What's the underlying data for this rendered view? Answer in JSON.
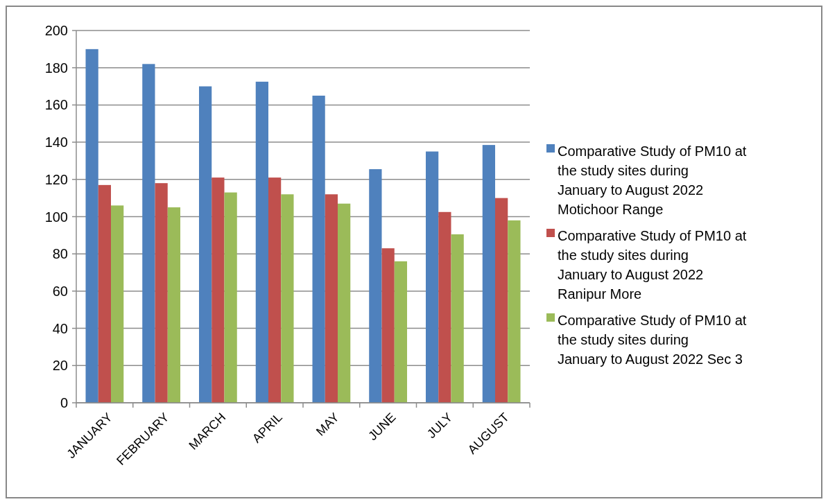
{
  "chart_data": {
    "type": "bar",
    "categories": [
      "JANUARY",
      "FEBRUARY",
      "MARCH",
      "APRIL",
      "MAY",
      "JUNE",
      "JULY",
      "AUGUST"
    ],
    "series": [
      {
        "name": "Comparative Study of PM10 at the study sites during January to August 2022 Motichoor Range",
        "color": "#4f81bd",
        "values": [
          190,
          182,
          170,
          172.5,
          165,
          125.5,
          135,
          138.5
        ]
      },
      {
        "name": "Comparative Study of PM10 at the study sites during January to August 2022 Ranipur More",
        "color": "#c0504d",
        "values": [
          117,
          118,
          121,
          121,
          112,
          83,
          102.5,
          110
        ]
      },
      {
        "name": "Comparative Study of PM10 at the study sites during January to August 2022 Sec 3",
        "color": "#9bbb59",
        "values": [
          106,
          105,
          113,
          112,
          107,
          76,
          90.5,
          98
        ]
      }
    ],
    "ylim": [
      0,
      200
    ],
    "yticks": [
      0,
      20,
      40,
      60,
      80,
      100,
      120,
      140,
      160,
      180,
      200
    ],
    "grid": "y",
    "legend": "right"
  }
}
